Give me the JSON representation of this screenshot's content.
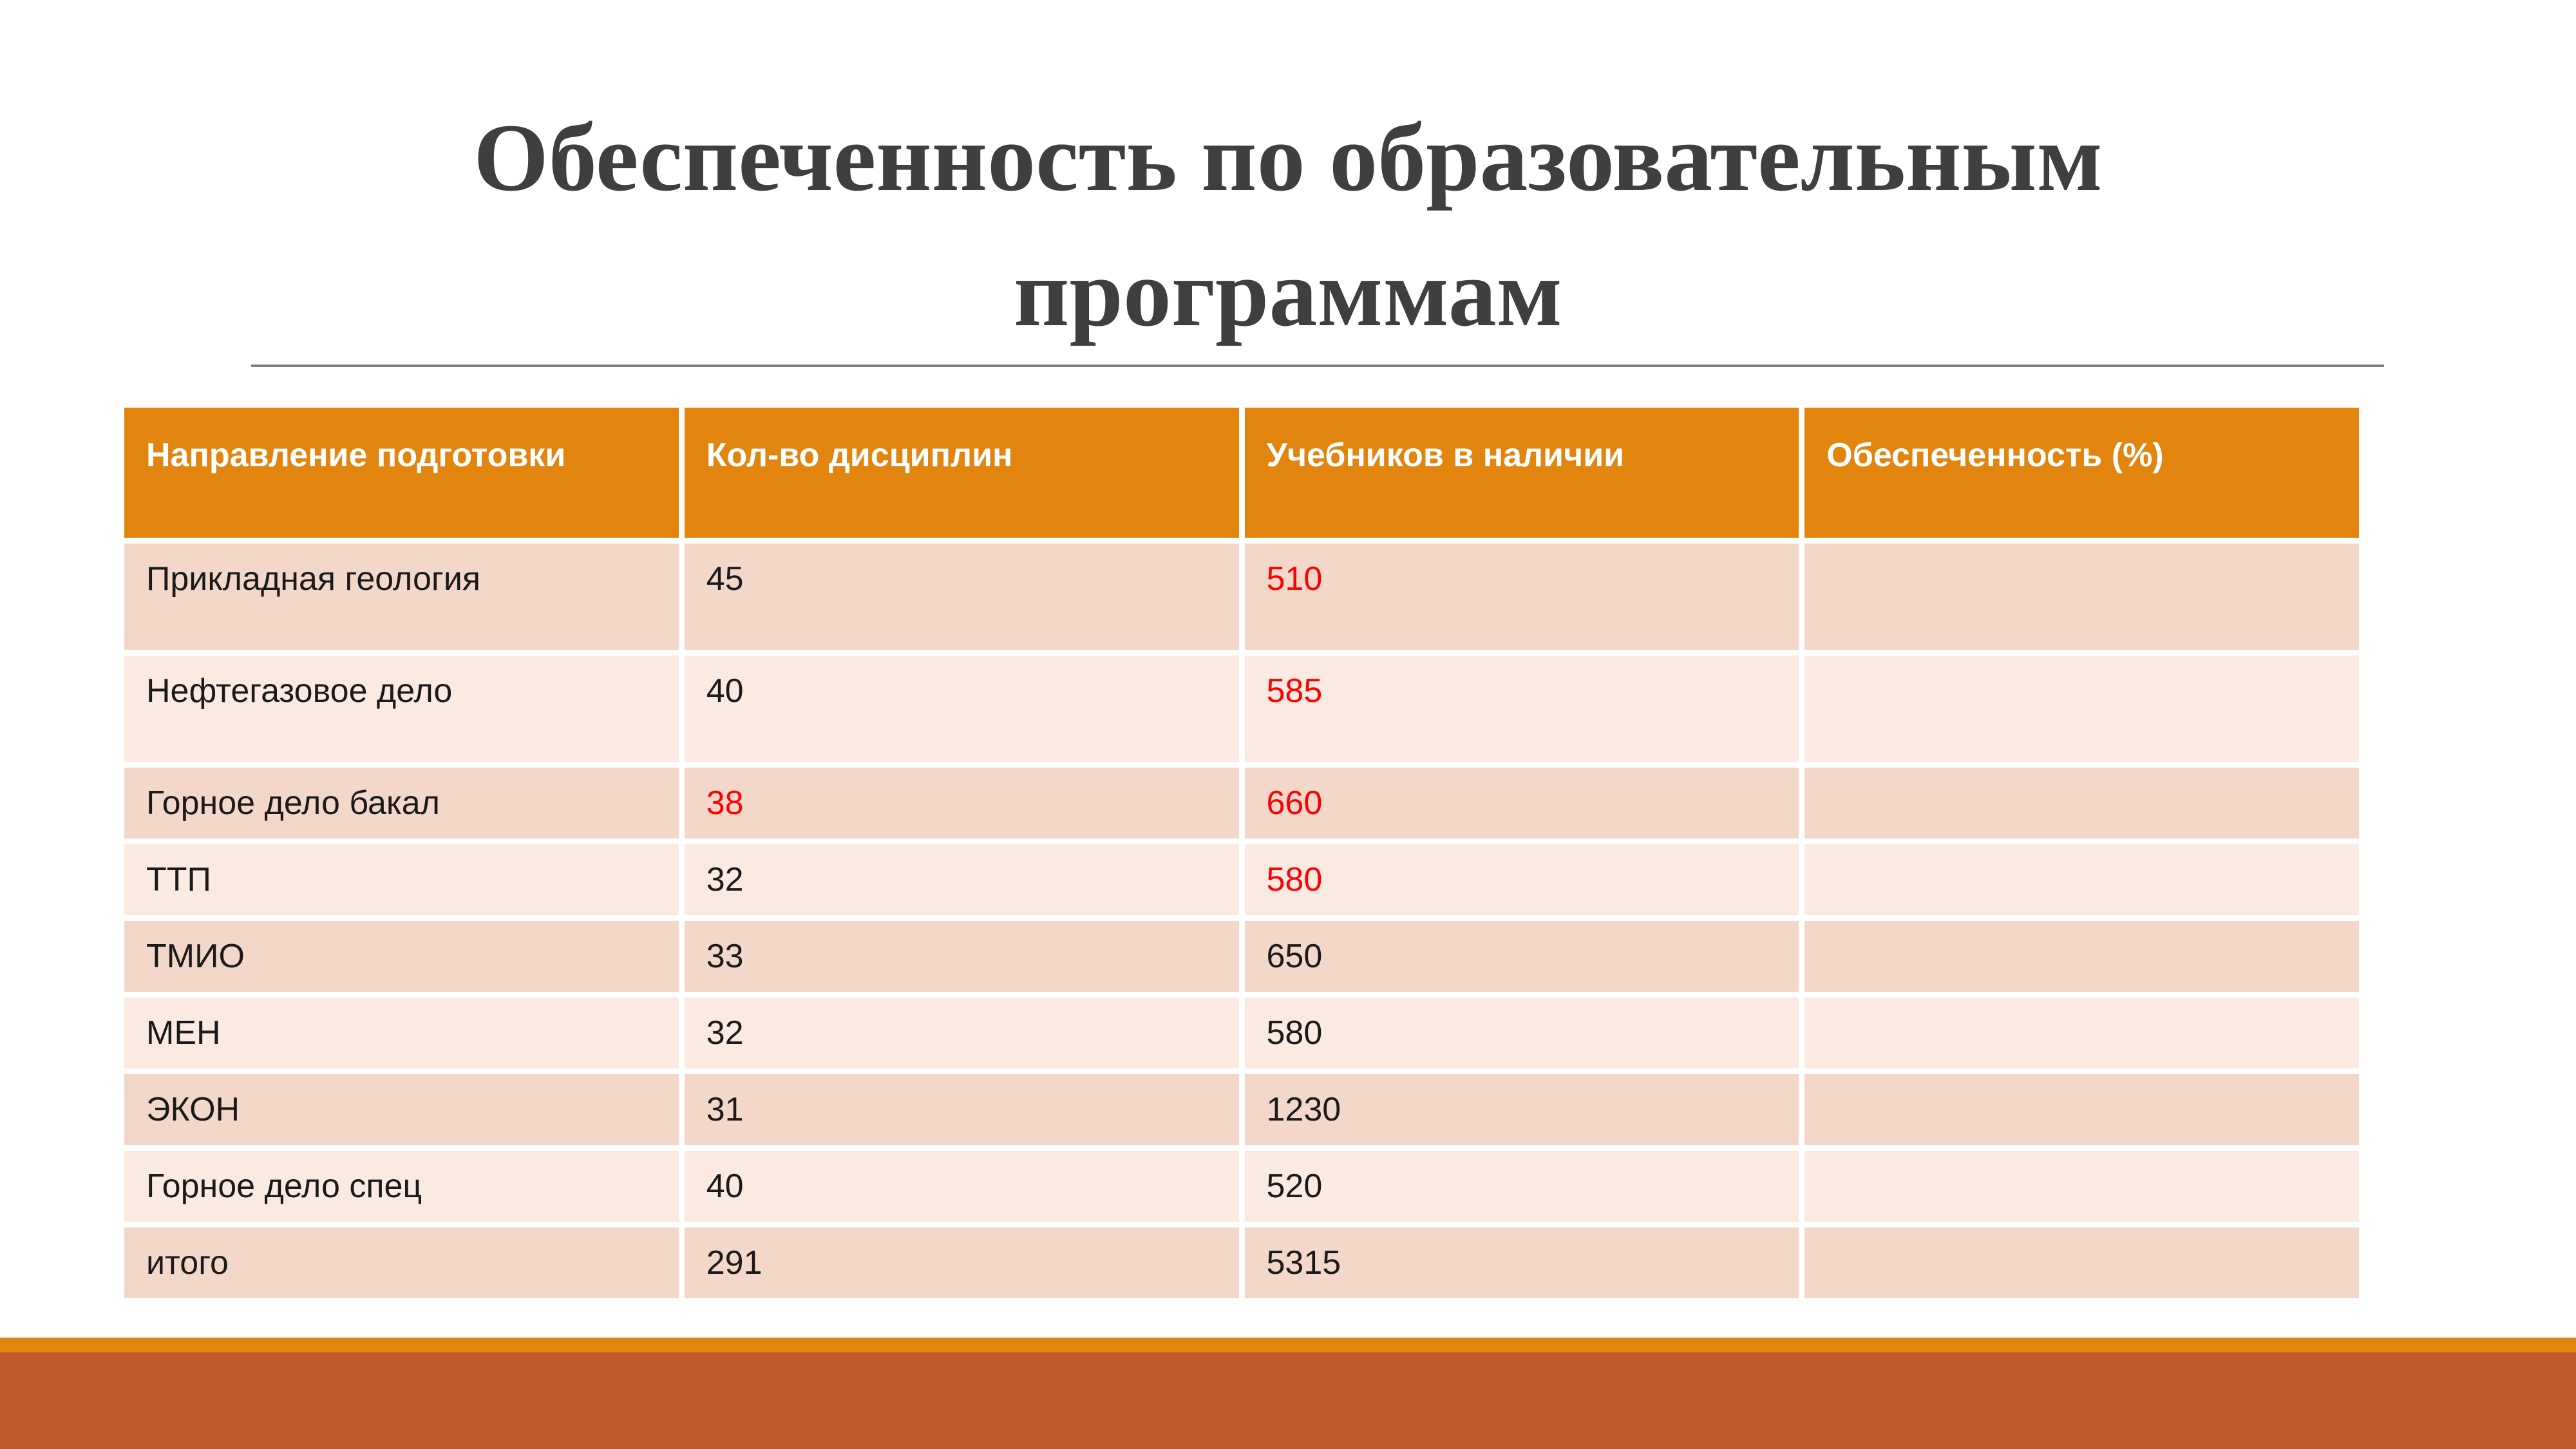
{
  "slide": {
    "title": "Обеспеченность по образовательным программам",
    "colors": {
      "title_text": "#3F3F3F",
      "divider_gray": "#808080",
      "header_orange": "#E1850F",
      "row_band_dark": "#F3D8C9",
      "row_band_light": "#FAEAE2",
      "value_red": "#FF0000",
      "footer_orange": "#E1850F",
      "footer_rust": "#BC5A2B"
    }
  },
  "table": {
    "headers": [
      "Направление подготовки",
      "Кол-во дисциплин",
      "Учебников в наличии",
      "Обеспеченность (%)"
    ],
    "rows": [
      {
        "name": "Прикладная геология",
        "disciplines": "45",
        "textbooks": "510",
        "provision": "",
        "red": [
          "textbooks"
        ]
      },
      {
        "name": "Нефтегазовое дело",
        "disciplines": "40",
        "textbooks": "585",
        "provision": "",
        "red": [
          "textbooks"
        ]
      },
      {
        "name": "Горное дело бакал",
        "disciplines": "38",
        "textbooks": "660",
        "provision": "",
        "red": [
          "disciplines",
          "textbooks"
        ]
      },
      {
        "name": "ТТП",
        "disciplines": "32",
        "textbooks": "580",
        "provision": "",
        "red": [
          "textbooks"
        ]
      },
      {
        "name": "ТМИО",
        "disciplines": "33",
        "textbooks": "650",
        "provision": "",
        "red": []
      },
      {
        "name": "МЕН",
        "disciplines": "32",
        "textbooks": "580",
        "provision": "",
        "red": []
      },
      {
        "name": "ЭКОН",
        "disciplines": "31",
        "textbooks": "1230",
        "provision": "",
        "red": []
      },
      {
        "name": "Горное дело спец",
        "disciplines": "40",
        "textbooks": "520",
        "provision": "",
        "red": []
      },
      {
        "name": "итого",
        "disciplines": "291",
        "textbooks": "5315",
        "provision": "",
        "red": []
      }
    ]
  }
}
